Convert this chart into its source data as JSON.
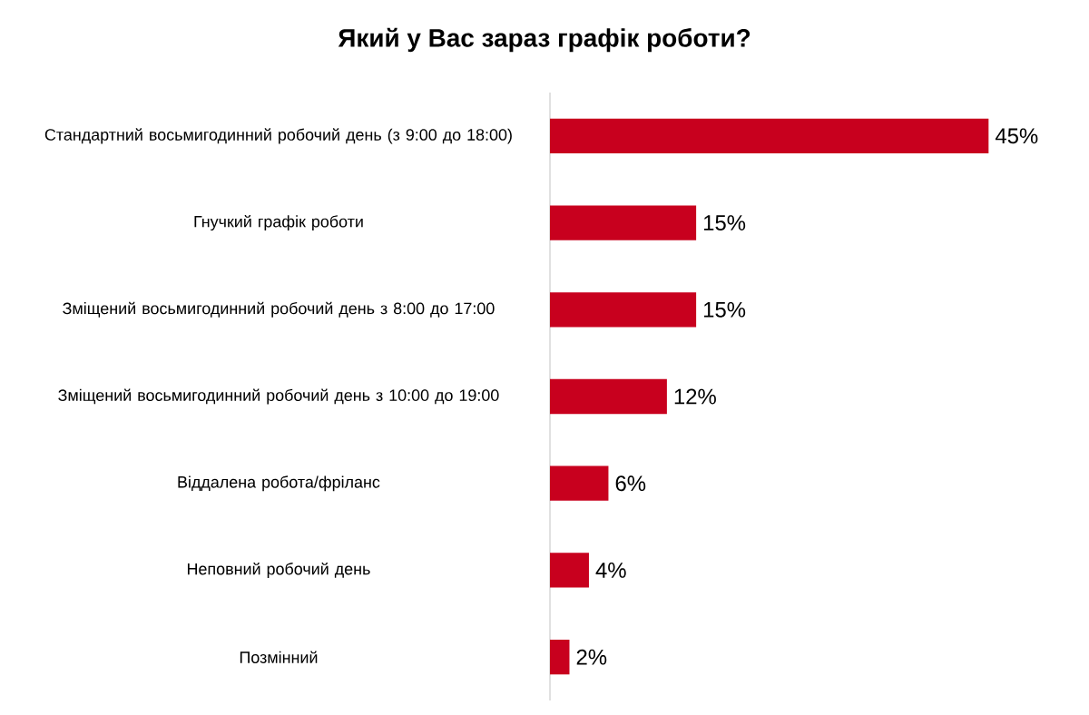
{
  "chart_data": {
    "type": "bar",
    "orientation": "horizontal",
    "title": "Який у Вас зараз графік роботи?",
    "categories": [
      "Стандартний восьмигодинний робочий день (з 9:00 до 18:00)",
      "Гнучкий графік роботи",
      "Зміщений восьмигодинний робочий день з 8:00 до 17:00",
      "Зміщений восьмигодинний робочий день з 10:00 до 19:00",
      "Віддалена робота/фріланс",
      "Неповний робочий день",
      "Позмінний"
    ],
    "values": [
      45,
      15,
      15,
      12,
      6,
      4,
      2
    ],
    "value_labels": [
      "45%",
      "15%",
      "15%",
      "12%",
      "6%",
      "4%",
      "2%"
    ],
    "color": "#c8001e"
  }
}
